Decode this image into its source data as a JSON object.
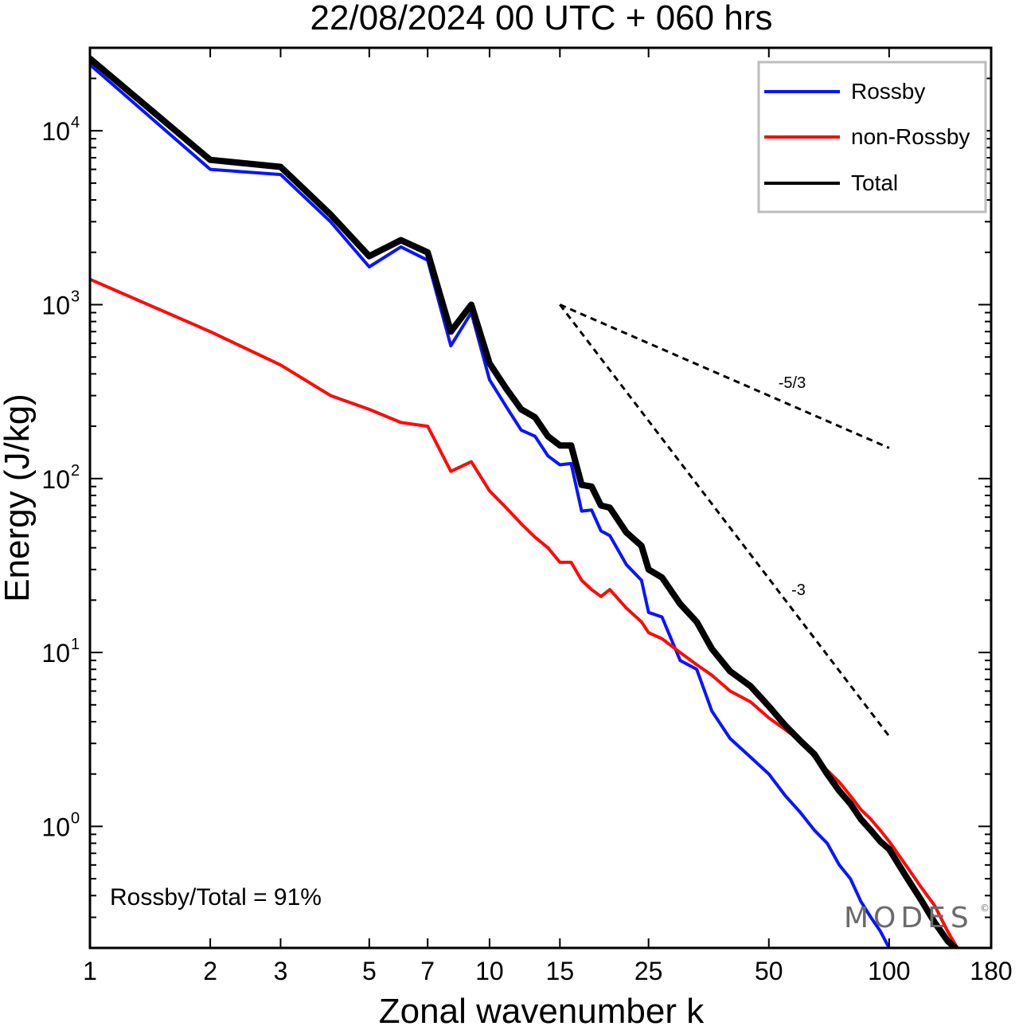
{
  "chart_data": {
    "type": "line",
    "title": "22/08/2024  00 UTC  + 060 hrs",
    "xlabel": "Zonal wavenumber k",
    "ylabel": "Energy (J/kg)",
    "x_scale": "log",
    "y_scale": "log",
    "xlim": [
      1,
      180
    ],
    "ylim": [
      0.2,
      30000
    ],
    "x_ticks": [
      1,
      2,
      3,
      5,
      7,
      10,
      15,
      25,
      50,
      100,
      180
    ],
    "x_tick_labels": [
      "1",
      "2",
      "3",
      "5",
      "7",
      "10",
      "15",
      "25",
      "50",
      "100",
      "180"
    ],
    "y_ticks": [
      {
        "value": 1,
        "base": "10",
        "exp": "0"
      },
      {
        "value": 10,
        "base": "10",
        "exp": "1"
      },
      {
        "value": 100,
        "base": "10",
        "exp": "2"
      },
      {
        "value": 1000,
        "base": "10",
        "exp": "3"
      },
      {
        "value": 10000,
        "base": "10",
        "exp": "4"
      }
    ],
    "legend_position": "top-right",
    "series": [
      {
        "name": "Rossby",
        "color": "#0a14ff",
        "x": [
          1,
          2,
          3,
          4,
          5,
          6,
          7,
          8,
          9,
          10,
          11,
          12,
          13,
          14,
          15,
          16,
          17,
          18,
          19,
          20,
          22,
          24,
          25,
          27,
          30,
          33,
          36,
          40,
          45,
          50,
          55,
          60,
          65,
          70,
          75,
          80,
          85,
          90,
          95,
          100
        ],
        "y": [
          24000,
          6000,
          5600,
          3000,
          1650,
          2150,
          1800,
          580,
          900,
          370,
          260,
          190,
          175,
          135,
          120,
          122,
          65,
          66,
          50,
          47,
          32,
          26,
          17,
          16,
          9,
          8,
          4.6,
          3.2,
          2.5,
          2.0,
          1.5,
          1.2,
          0.95,
          0.8,
          0.6,
          0.5,
          0.37,
          0.3,
          0.25,
          0.2
        ]
      },
      {
        "name": "non-Rossby",
        "color": "#ff0a0a",
        "x": [
          1,
          2,
          3,
          4,
          5,
          6,
          7,
          8,
          9,
          10,
          11,
          12,
          13,
          14,
          15,
          16,
          17,
          18,
          19,
          20,
          22,
          24,
          25,
          27,
          30,
          33,
          36,
          40,
          45,
          50,
          55,
          60,
          65,
          70,
          75,
          80,
          85,
          90,
          95,
          100,
          110,
          120,
          130,
          140,
          150
        ],
        "y": [
          1400,
          700,
          450,
          300,
          250,
          210,
          200,
          110,
          125,
          85,
          68,
          55,
          46,
          40,
          33,
          33,
          26,
          23,
          21,
          23,
          18,
          15,
          13,
          12,
          10,
          8.5,
          7.4,
          6.0,
          5.2,
          4.2,
          3.6,
          3.1,
          2.5,
          2.1,
          1.8,
          1.5,
          1.25,
          1.1,
          0.95,
          0.82,
          0.6,
          0.45,
          0.35,
          0.25,
          0.19
        ]
      },
      {
        "name": "Total",
        "color": "#000000",
        "x": [
          1,
          2,
          3,
          4,
          5,
          6,
          7,
          8,
          9,
          10,
          11,
          12,
          13,
          14,
          15,
          16,
          17,
          18,
          19,
          20,
          22,
          24,
          25,
          27,
          30,
          33,
          36,
          40,
          45,
          50,
          55,
          60,
          65,
          70,
          75,
          80,
          85,
          90,
          95,
          100,
          110,
          120,
          130,
          140,
          150
        ],
        "y": [
          26000,
          6800,
          6200,
          3300,
          1900,
          2350,
          2000,
          700,
          1000,
          460,
          330,
          250,
          225,
          175,
          155,
          155,
          92,
          90,
          70,
          68,
          49,
          41,
          30,
          27,
          19,
          15,
          10.5,
          7.8,
          6.4,
          4.9,
          3.8,
          3.1,
          2.6,
          2.0,
          1.6,
          1.35,
          1.1,
          0.95,
          0.82,
          0.74,
          0.52,
          0.38,
          0.28,
          0.22,
          0.19
        ]
      }
    ],
    "reference_slopes": [
      {
        "label": "-5/3",
        "x": [
          15,
          100
        ],
        "y": [
          1000,
          150
        ]
      },
      {
        "label": "-3",
        "x": [
          15,
          100
        ],
        "y": [
          1000,
          3.3
        ]
      }
    ],
    "annotation": "Rossby/Total = 91%",
    "watermark": "MODES"
  }
}
